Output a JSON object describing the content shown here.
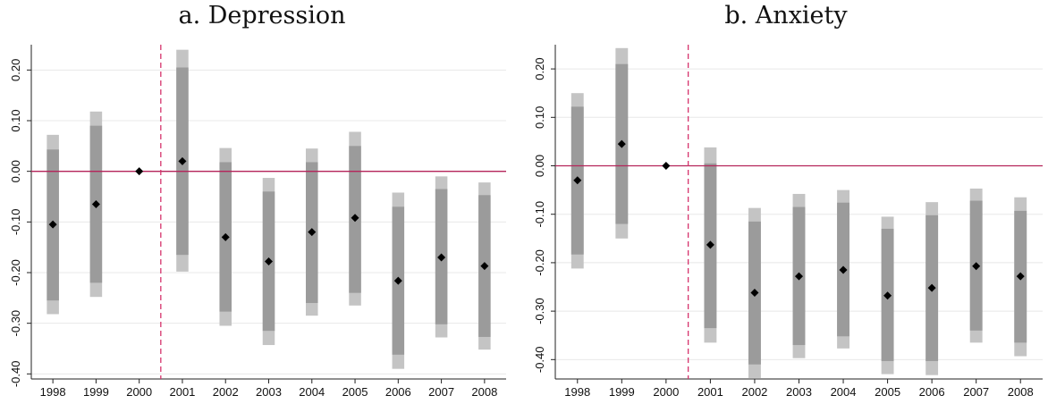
{
  "colors": {
    "outer_ci": "#c4c4c4",
    "inner_ci": "#9b9b9b",
    "point": "#000000",
    "zero_line": "#b5245a",
    "treatment_line": "#d6336c",
    "grid": "#e8e8e8"
  },
  "chart_data": [
    {
      "type": "scatter",
      "title": "a. Depression",
      "xlabel": "",
      "ylabel": "",
      "x": [
        "1998",
        "1999",
        "2000",
        "2001",
        "2002",
        "2003",
        "2004",
        "2005",
        "2006",
        "2007",
        "2008"
      ],
      "ylim": [
        -0.41,
        0.25
      ],
      "y_ticks": [
        "0.20",
        "0.10",
        "0.00",
        "-0.10",
        "-0.20",
        "-0.30",
        "-0.40"
      ],
      "y_tick_values": [
        0.2,
        0.1,
        0.0,
        -0.1,
        -0.2,
        -0.3,
        -0.4
      ],
      "reference_line_y": 0.0,
      "treatment_after": "2000",
      "grid": true,
      "series": [
        {
          "estimates": [
            -0.105,
            -0.065,
            0.0,
            0.02,
            -0.13,
            -0.178,
            -0.12,
            -0.092,
            -0.216,
            -0.17,
            -0.187
          ],
          "ci_inner": [
            [
              -0.255,
              0.043
            ],
            [
              -0.22,
              0.09
            ],
            null,
            [
              -0.165,
              0.205
            ],
            [
              -0.277,
              0.018
            ],
            [
              -0.315,
              -0.04
            ],
            [
              -0.26,
              0.018
            ],
            [
              -0.24,
              0.05
            ],
            [
              -0.362,
              -0.07
            ],
            [
              -0.302,
              -0.035
            ],
            [
              -0.327,
              -0.047
            ]
          ],
          "ci_outer": [
            [
              -0.282,
              0.072
            ],
            [
              -0.248,
              0.118
            ],
            null,
            [
              -0.198,
              0.24
            ],
            [
              -0.305,
              0.046
            ],
            [
              -0.343,
              -0.013
            ],
            [
              -0.285,
              0.045
            ],
            [
              -0.265,
              0.078
            ],
            [
              -0.39,
              -0.042
            ],
            [
              -0.328,
              -0.01
            ],
            [
              -0.352,
              -0.022
            ]
          ]
        }
      ]
    },
    {
      "type": "scatter",
      "title": "b. Anxiety",
      "xlabel": "",
      "ylabel": "",
      "x": [
        "1998",
        "1999",
        "2000",
        "2001",
        "2002",
        "2003",
        "2004",
        "2005",
        "2006",
        "2007",
        "2008"
      ],
      "ylim": [
        -0.44,
        0.25
      ],
      "y_ticks": [
        "0.20",
        "0.10",
        "0.00",
        "-0.10",
        "-0.20",
        "-0.30",
        "-0.40"
      ],
      "y_tick_values": [
        0.2,
        0.1,
        0.0,
        -0.1,
        -0.2,
        -0.3,
        -0.4
      ],
      "reference_line_y": 0.0,
      "treatment_after": "2000",
      "grid": true,
      "series": [
        {
          "estimates": [
            -0.03,
            0.045,
            0.0,
            -0.163,
            -0.262,
            -0.228,
            -0.215,
            -0.268,
            -0.252,
            -0.207,
            -0.228
          ],
          "ci_inner": [
            [
              -0.183,
              0.122
            ],
            [
              -0.12,
              0.21
            ],
            null,
            [
              -0.335,
              0.005
            ],
            [
              -0.41,
              -0.115
            ],
            [
              -0.37,
              -0.085
            ],
            [
              -0.352,
              -0.076
            ],
            [
              -0.403,
              -0.13
            ],
            [
              -0.403,
              -0.102
            ],
            [
              -0.34,
              -0.072
            ],
            [
              -0.365,
              -0.093
            ]
          ],
          "ci_outer": [
            [
              -0.212,
              0.15
            ],
            [
              -0.15,
              0.243
            ],
            null,
            [
              -0.365,
              0.038
            ],
            [
              -0.438,
              -0.087
            ],
            [
              -0.397,
              -0.058
            ],
            [
              -0.377,
              -0.05
            ],
            [
              -0.43,
              -0.105
            ],
            [
              -0.432,
              -0.075
            ],
            [
              -0.365,
              -0.047
            ],
            [
              -0.393,
              -0.065
            ]
          ]
        }
      ]
    }
  ]
}
